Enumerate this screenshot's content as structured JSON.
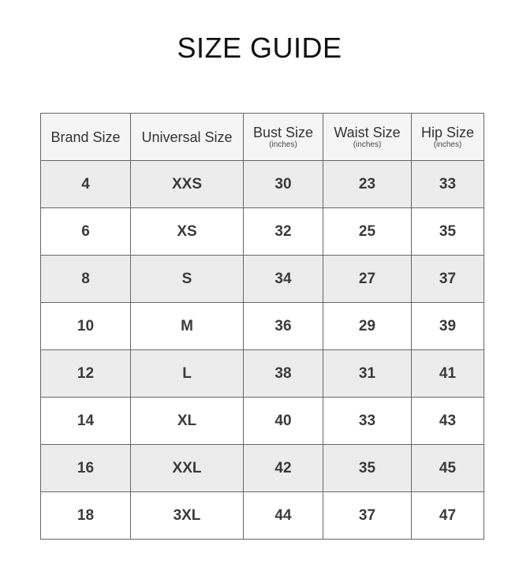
{
  "title": "SIZE GUIDE",
  "columns": [
    {
      "label": "Brand Size",
      "unit": ""
    },
    {
      "label": "Universal Size",
      "unit": ""
    },
    {
      "label": "Bust Size",
      "unit": "(inches)"
    },
    {
      "label": "Waist Size",
      "unit": "(inches)"
    },
    {
      "label": "Hip Size",
      "unit": "(inches)"
    }
  ],
  "rows": [
    [
      "4",
      "XXS",
      "30",
      "23",
      "33"
    ],
    [
      "6",
      "XS",
      "32",
      "25",
      "35"
    ],
    [
      "8",
      "S",
      "34",
      "27",
      "37"
    ],
    [
      "10",
      "M",
      "36",
      "29",
      "39"
    ],
    [
      "12",
      "L",
      "38",
      "31",
      "41"
    ],
    [
      "14",
      "XL",
      "40",
      "33",
      "43"
    ],
    [
      "16",
      "XXL",
      "42",
      "35",
      "45"
    ],
    [
      "18",
      "3XL",
      "44",
      "37",
      "47"
    ]
  ]
}
